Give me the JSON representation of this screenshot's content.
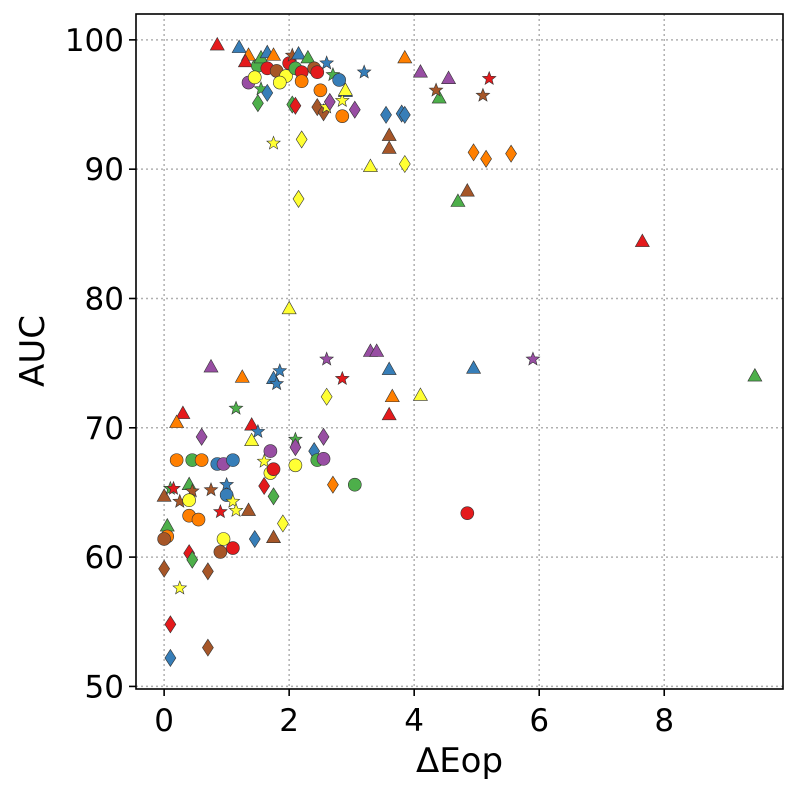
{
  "chart_data": {
    "type": "scatter",
    "xlabel": "ΔEop",
    "ylabel": "AUC",
    "xlim": [
      -0.45,
      9.9
    ],
    "ylim": [
      49.8,
      102
    ],
    "xticks": [
      0,
      2,
      4,
      6,
      8
    ],
    "yticks": [
      50,
      60,
      70,
      80,
      90,
      100
    ],
    "grid": true,
    "grid_style": "dotted",
    "legend": "none",
    "colors": {
      "red": "#e41a1c",
      "blue": "#377eb8",
      "green": "#4daf4a",
      "purple": "#984ea3",
      "orange": "#ff7f00",
      "yellow": "#ffff33",
      "brown": "#a65628"
    },
    "points": [
      {
        "x": 0.85,
        "y": 99.6,
        "m": "triangle",
        "c": "red"
      },
      {
        "x": 1.2,
        "y": 99.4,
        "m": "triangle",
        "c": "blue"
      },
      {
        "x": 1.35,
        "y": 98.8,
        "m": "triangle",
        "c": "orange"
      },
      {
        "x": 1.3,
        "y": 98.3,
        "m": "triangle",
        "c": "red"
      },
      {
        "x": 1.5,
        "y": 98.0,
        "m": "circle",
        "c": "green"
      },
      {
        "x": 1.55,
        "y": 98.6,
        "m": "triangle",
        "c": "green"
      },
      {
        "x": 1.65,
        "y": 99.0,
        "m": "triangle",
        "c": "blue"
      },
      {
        "x": 1.75,
        "y": 98.8,
        "m": "triangle",
        "c": "orange"
      },
      {
        "x": 1.65,
        "y": 97.8,
        "m": "circle",
        "c": "red"
      },
      {
        "x": 1.8,
        "y": 97.6,
        "m": "circle",
        "c": "brown"
      },
      {
        "x": 1.95,
        "y": 97.2,
        "m": "circle",
        "c": "yellow"
      },
      {
        "x": 1.85,
        "y": 96.7,
        "m": "circle",
        "c": "yellow"
      },
      {
        "x": 1.35,
        "y": 96.7,
        "m": "circle",
        "c": "purple"
      },
      {
        "x": 1.45,
        "y": 97.1,
        "m": "circle",
        "c": "yellow"
      },
      {
        "x": 1.55,
        "y": 96.2,
        "m": "star",
        "c": "green"
      },
      {
        "x": 1.5,
        "y": 95.1,
        "m": "diamond",
        "c": "green"
      },
      {
        "x": 1.65,
        "y": 95.9,
        "m": "diamond",
        "c": "blue"
      },
      {
        "x": 2.0,
        "y": 98.2,
        "m": "circle",
        "c": "red"
      },
      {
        "x": 2.05,
        "y": 98.8,
        "m": "star",
        "c": "brown"
      },
      {
        "x": 2.1,
        "y": 97.8,
        "m": "circle",
        "c": "green"
      },
      {
        "x": 2.15,
        "y": 98.9,
        "m": "triangle",
        "c": "blue"
      },
      {
        "x": 2.2,
        "y": 97.5,
        "m": "circle",
        "c": "red"
      },
      {
        "x": 2.2,
        "y": 96.8,
        "m": "circle",
        "c": "orange"
      },
      {
        "x": 2.3,
        "y": 98.6,
        "m": "triangle",
        "c": "green"
      },
      {
        "x": 2.4,
        "y": 97.8,
        "m": "circle",
        "c": "brown"
      },
      {
        "x": 2.45,
        "y": 97.5,
        "m": "circle",
        "c": "red"
      },
      {
        "x": 2.05,
        "y": 95.0,
        "m": "diamond",
        "c": "green"
      },
      {
        "x": 2.1,
        "y": 94.9,
        "m": "diamond",
        "c": "red"
      },
      {
        "x": 2.5,
        "y": 96.1,
        "m": "circle",
        "c": "orange"
      },
      {
        "x": 2.45,
        "y": 94.8,
        "m": "diamond",
        "c": "brown"
      },
      {
        "x": 2.55,
        "y": 94.4,
        "m": "diamond",
        "c": "brown"
      },
      {
        "x": 2.6,
        "y": 94.8,
        "m": "star",
        "c": "yellow"
      },
      {
        "x": 2.65,
        "y": 95.2,
        "m": "diamond",
        "c": "purple"
      },
      {
        "x": 2.7,
        "y": 97.3,
        "m": "star",
        "c": "green"
      },
      {
        "x": 2.6,
        "y": 98.2,
        "m": "star",
        "c": "blue"
      },
      {
        "x": 2.8,
        "y": 96.9,
        "m": "circle",
        "c": "blue"
      },
      {
        "x": 2.9,
        "y": 96.0,
        "m": "triangle",
        "c": "blue"
      },
      {
        "x": 2.85,
        "y": 95.3,
        "m": "star",
        "c": "yellow"
      },
      {
        "x": 2.9,
        "y": 96.1,
        "m": "triangle",
        "c": "yellow"
      },
      {
        "x": 2.85,
        "y": 94.1,
        "m": "circle",
        "c": "orange"
      },
      {
        "x": 3.05,
        "y": 94.6,
        "m": "diamond",
        "c": "purple"
      },
      {
        "x": 3.2,
        "y": 97.5,
        "m": "star",
        "c": "blue"
      },
      {
        "x": 3.55,
        "y": 94.2,
        "m": "diamond",
        "c": "blue"
      },
      {
        "x": 3.8,
        "y": 94.3,
        "m": "diamond",
        "c": "blue"
      },
      {
        "x": 3.85,
        "y": 94.2,
        "m": "diamond",
        "c": "blue"
      },
      {
        "x": 3.85,
        "y": 98.6,
        "m": "triangle",
        "c": "orange"
      },
      {
        "x": 3.6,
        "y": 92.6,
        "m": "triangle",
        "c": "brown"
      },
      {
        "x": 3.6,
        "y": 91.6,
        "m": "triangle",
        "c": "brown"
      },
      {
        "x": 3.3,
        "y": 90.2,
        "m": "triangle",
        "c": "yellow"
      },
      {
        "x": 3.85,
        "y": 90.4,
        "m": "diamond",
        "c": "yellow"
      },
      {
        "x": 2.2,
        "y": 92.3,
        "m": "diamond",
        "c": "yellow"
      },
      {
        "x": 1.75,
        "y": 92.0,
        "m": "star",
        "c": "yellow"
      },
      {
        "x": 2.15,
        "y": 87.7,
        "m": "diamond",
        "c": "yellow"
      },
      {
        "x": 4.1,
        "y": 97.5,
        "m": "triangle",
        "c": "purple"
      },
      {
        "x": 4.4,
        "y": 95.5,
        "m": "triangle",
        "c": "green"
      },
      {
        "x": 4.35,
        "y": 96.1,
        "m": "star",
        "c": "brown"
      },
      {
        "x": 4.55,
        "y": 97.0,
        "m": "triangle",
        "c": "purple"
      },
      {
        "x": 5.1,
        "y": 95.7,
        "m": "star",
        "c": "brown"
      },
      {
        "x": 5.2,
        "y": 97.0,
        "m": "star",
        "c": "red"
      },
      {
        "x": 4.95,
        "y": 91.3,
        "m": "diamond",
        "c": "orange"
      },
      {
        "x": 5.15,
        "y": 90.8,
        "m": "diamond",
        "c": "orange"
      },
      {
        "x": 5.55,
        "y": 91.2,
        "m": "diamond",
        "c": "orange"
      },
      {
        "x": 4.7,
        "y": 87.5,
        "m": "triangle",
        "c": "green"
      },
      {
        "x": 4.85,
        "y": 88.3,
        "m": "triangle",
        "c": "brown"
      },
      {
        "x": 7.65,
        "y": 84.4,
        "m": "triangle",
        "c": "red"
      },
      {
        "x": 2.0,
        "y": 79.2,
        "m": "triangle",
        "c": "yellow"
      },
      {
        "x": 3.3,
        "y": 75.9,
        "m": "triangle",
        "c": "purple"
      },
      {
        "x": 3.4,
        "y": 75.9,
        "m": "triangle",
        "c": "purple"
      },
      {
        "x": 2.6,
        "y": 75.3,
        "m": "star",
        "c": "purple"
      },
      {
        "x": 5.9,
        "y": 75.3,
        "m": "star",
        "c": "purple"
      },
      {
        "x": 0.75,
        "y": 74.7,
        "m": "triangle",
        "c": "purple"
      },
      {
        "x": 1.25,
        "y": 73.9,
        "m": "triangle",
        "c": "orange"
      },
      {
        "x": 1.75,
        "y": 73.8,
        "m": "triangle",
        "c": "blue"
      },
      {
        "x": 1.85,
        "y": 74.4,
        "m": "star",
        "c": "blue"
      },
      {
        "x": 1.8,
        "y": 73.4,
        "m": "star",
        "c": "blue"
      },
      {
        "x": 2.85,
        "y": 73.8,
        "m": "star",
        "c": "red"
      },
      {
        "x": 3.6,
        "y": 74.5,
        "m": "triangle",
        "c": "blue"
      },
      {
        "x": 4.95,
        "y": 74.6,
        "m": "triangle",
        "c": "blue"
      },
      {
        "x": 9.45,
        "y": 74.0,
        "m": "triangle",
        "c": "green"
      },
      {
        "x": 2.6,
        "y": 72.4,
        "m": "diamond",
        "c": "yellow"
      },
      {
        "x": 3.65,
        "y": 72.4,
        "m": "triangle",
        "c": "orange"
      },
      {
        "x": 4.1,
        "y": 72.5,
        "m": "triangle",
        "c": "yellow"
      },
      {
        "x": 3.6,
        "y": 71.0,
        "m": "triangle",
        "c": "red"
      },
      {
        "x": 1.15,
        "y": 71.5,
        "m": "star",
        "c": "green"
      },
      {
        "x": 0.3,
        "y": 71.1,
        "m": "triangle",
        "c": "red"
      },
      {
        "x": 0.2,
        "y": 70.4,
        "m": "triangle",
        "c": "orange"
      },
      {
        "x": 1.4,
        "y": 70.2,
        "m": "triangle",
        "c": "red"
      },
      {
        "x": 1.5,
        "y": 69.7,
        "m": "star",
        "c": "blue"
      },
      {
        "x": 1.4,
        "y": 69.0,
        "m": "triangle",
        "c": "yellow"
      },
      {
        "x": 0.6,
        "y": 69.3,
        "m": "diamond",
        "c": "purple"
      },
      {
        "x": 2.1,
        "y": 69.1,
        "m": "star",
        "c": "green"
      },
      {
        "x": 2.1,
        "y": 68.5,
        "m": "diamond",
        "c": "purple"
      },
      {
        "x": 2.55,
        "y": 69.3,
        "m": "diamond",
        "c": "purple"
      },
      {
        "x": 2.4,
        "y": 68.2,
        "m": "diamond",
        "c": "blue"
      },
      {
        "x": 1.7,
        "y": 68.2,
        "m": "circle",
        "c": "purple"
      },
      {
        "x": 0.2,
        "y": 67.5,
        "m": "circle",
        "c": "orange"
      },
      {
        "x": 0.45,
        "y": 67.5,
        "m": "circle",
        "c": "green"
      },
      {
        "x": 0.6,
        "y": 67.5,
        "m": "circle",
        "c": "orange"
      },
      {
        "x": 0.85,
        "y": 67.2,
        "m": "circle",
        "c": "blue"
      },
      {
        "x": 0.95,
        "y": 67.2,
        "m": "circle",
        "c": "purple"
      },
      {
        "x": 1.1,
        "y": 67.5,
        "m": "circle",
        "c": "blue"
      },
      {
        "x": 1.6,
        "y": 67.4,
        "m": "star",
        "c": "yellow"
      },
      {
        "x": 1.7,
        "y": 66.5,
        "m": "circle",
        "c": "yellow"
      },
      {
        "x": 1.75,
        "y": 66.8,
        "m": "circle",
        "c": "red"
      },
      {
        "x": 2.1,
        "y": 67.1,
        "m": "circle",
        "c": "yellow"
      },
      {
        "x": 2.45,
        "y": 67.5,
        "m": "circle",
        "c": "green"
      },
      {
        "x": 2.55,
        "y": 67.6,
        "m": "circle",
        "c": "purple"
      },
      {
        "x": 2.7,
        "y": 65.6,
        "m": "diamond",
        "c": "orange"
      },
      {
        "x": 3.05,
        "y": 65.6,
        "m": "circle",
        "c": "green"
      },
      {
        "x": 0.0,
        "y": 64.7,
        "m": "triangle",
        "c": "brown"
      },
      {
        "x": 0.1,
        "y": 65.3,
        "m": "star",
        "c": "green"
      },
      {
        "x": 0.15,
        "y": 65.3,
        "m": "star",
        "c": "red"
      },
      {
        "x": 0.25,
        "y": 64.3,
        "m": "star",
        "c": "brown"
      },
      {
        "x": 0.4,
        "y": 65.6,
        "m": "triangle",
        "c": "green"
      },
      {
        "x": 0.45,
        "y": 65.1,
        "m": "star",
        "c": "brown"
      },
      {
        "x": 0.4,
        "y": 64.4,
        "m": "circle",
        "c": "yellow"
      },
      {
        "x": 0.4,
        "y": 63.2,
        "m": "circle",
        "c": "orange"
      },
      {
        "x": 0.55,
        "y": 62.9,
        "m": "circle",
        "c": "orange"
      },
      {
        "x": 0.75,
        "y": 65.2,
        "m": "star",
        "c": "brown"
      },
      {
        "x": 1.0,
        "y": 65.6,
        "m": "star",
        "c": "blue"
      },
      {
        "x": 1.0,
        "y": 64.8,
        "m": "circle",
        "c": "blue"
      },
      {
        "x": 1.1,
        "y": 64.3,
        "m": "star",
        "c": "yellow"
      },
      {
        "x": 1.15,
        "y": 63.6,
        "m": "star",
        "c": "yellow"
      },
      {
        "x": 0.9,
        "y": 63.5,
        "m": "star",
        "c": "red"
      },
      {
        "x": 1.35,
        "y": 63.6,
        "m": "triangle",
        "c": "brown"
      },
      {
        "x": 1.6,
        "y": 65.5,
        "m": "diamond",
        "c": "red"
      },
      {
        "x": 1.75,
        "y": 64.7,
        "m": "diamond",
        "c": "green"
      },
      {
        "x": 1.9,
        "y": 62.6,
        "m": "diamond",
        "c": "yellow"
      },
      {
        "x": 1.75,
        "y": 61.5,
        "m": "triangle",
        "c": "brown"
      },
      {
        "x": 1.45,
        "y": 61.4,
        "m": "diamond",
        "c": "blue"
      },
      {
        "x": 1.1,
        "y": 60.7,
        "m": "circle",
        "c": "red"
      },
      {
        "x": 0.95,
        "y": 61.4,
        "m": "circle",
        "c": "yellow"
      },
      {
        "x": 0.9,
        "y": 60.4,
        "m": "circle",
        "c": "brown"
      },
      {
        "x": 0.05,
        "y": 62.4,
        "m": "triangle",
        "c": "green"
      },
      {
        "x": 0.05,
        "y": 61.6,
        "m": "circle",
        "c": "orange"
      },
      {
        "x": 0.0,
        "y": 61.4,
        "m": "circle",
        "c": "brown"
      },
      {
        "x": 0.4,
        "y": 60.3,
        "m": "diamond",
        "c": "red"
      },
      {
        "x": 0.45,
        "y": 59.8,
        "m": "diamond",
        "c": "green"
      },
      {
        "x": 0.0,
        "y": 59.1,
        "m": "diamond",
        "c": "brown"
      },
      {
        "x": 0.7,
        "y": 58.9,
        "m": "diamond",
        "c": "brown"
      },
      {
        "x": 0.25,
        "y": 57.6,
        "m": "star",
        "c": "yellow"
      },
      {
        "x": 0.1,
        "y": 54.8,
        "m": "diamond",
        "c": "red"
      },
      {
        "x": 0.7,
        "y": 53.0,
        "m": "diamond",
        "c": "brown"
      },
      {
        "x": 0.1,
        "y": 52.2,
        "m": "diamond",
        "c": "blue"
      },
      {
        "x": 4.85,
        "y": 63.4,
        "m": "circle",
        "c": "red"
      }
    ]
  }
}
